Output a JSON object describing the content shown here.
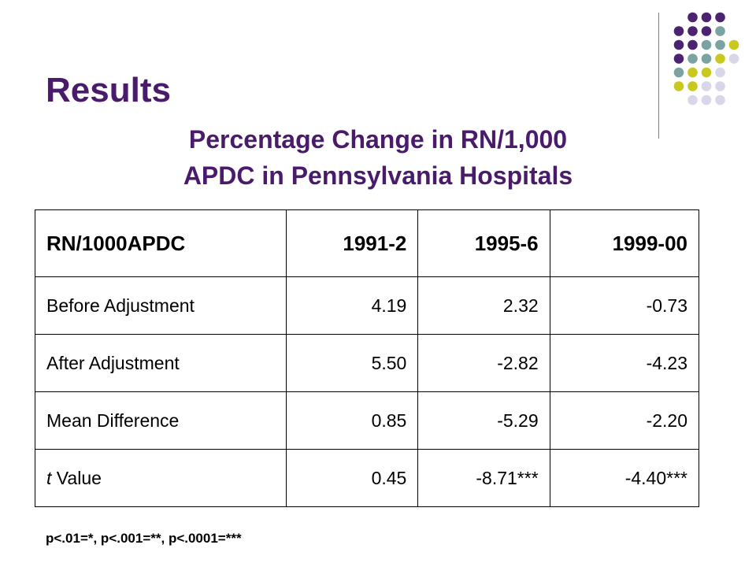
{
  "slide": {
    "title": "Results",
    "subtitle_line1": "Percentage Change in RN/1,000",
    "subtitle_line2": "APDC in Pennsylvania Hospitals",
    "footnote": "p<.01=*, p<.001=**, p<.0001=***"
  },
  "table": {
    "headers": [
      "RN/1000APDC",
      "1991-2",
      "1995-6",
      "1999-00"
    ],
    "rows": [
      {
        "label": "Before Adjustment",
        "values": [
          "4.19",
          "2.32",
          "-0.73"
        ]
      },
      {
        "label": "After Adjustment",
        "values": [
          "5.50",
          "-2.82",
          "-4.23"
        ]
      },
      {
        "label": "Mean Difference",
        "values": [
          "0.85",
          "-5.29",
          "-2.20"
        ]
      },
      {
        "label_italic": "t",
        "label": " Value",
        "values": [
          "0.45",
          "-8.71***",
          "-4.40***"
        ]
      }
    ]
  },
  "colors": {
    "title": "#4a1a6b",
    "dot_purple": "#4b2370",
    "dot_teal": "#7aa3a2",
    "dot_lime": "#c8c81e",
    "dot_lavender": "#d9d6ea"
  }
}
